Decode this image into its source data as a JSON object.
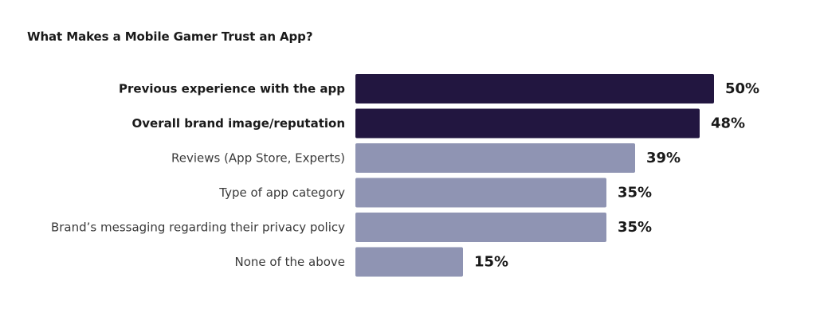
{
  "chart_data": {
    "type": "bar",
    "orientation": "horizontal",
    "title": "What Makes a Mobile Gamer Trust an App?",
    "categories": [
      "Previous experience with the app",
      "Overall brand image/reputation",
      "Reviews (App Store, Experts)",
      "Type of app category",
      "Brand’s messaging regarding their privacy policy",
      "None of the above"
    ],
    "values": [
      50,
      48,
      39,
      35,
      35,
      15
    ],
    "value_labels": [
      "50%",
      "48%",
      "39%",
      "35%",
      "35%",
      "15%"
    ],
    "highlighted": [
      true,
      true,
      false,
      false,
      false,
      false
    ],
    "colors": {
      "highlight": "#221640",
      "normal": "#8f94b3"
    },
    "xlim": [
      0,
      50
    ],
    "grid": false,
    "legend": "none"
  }
}
